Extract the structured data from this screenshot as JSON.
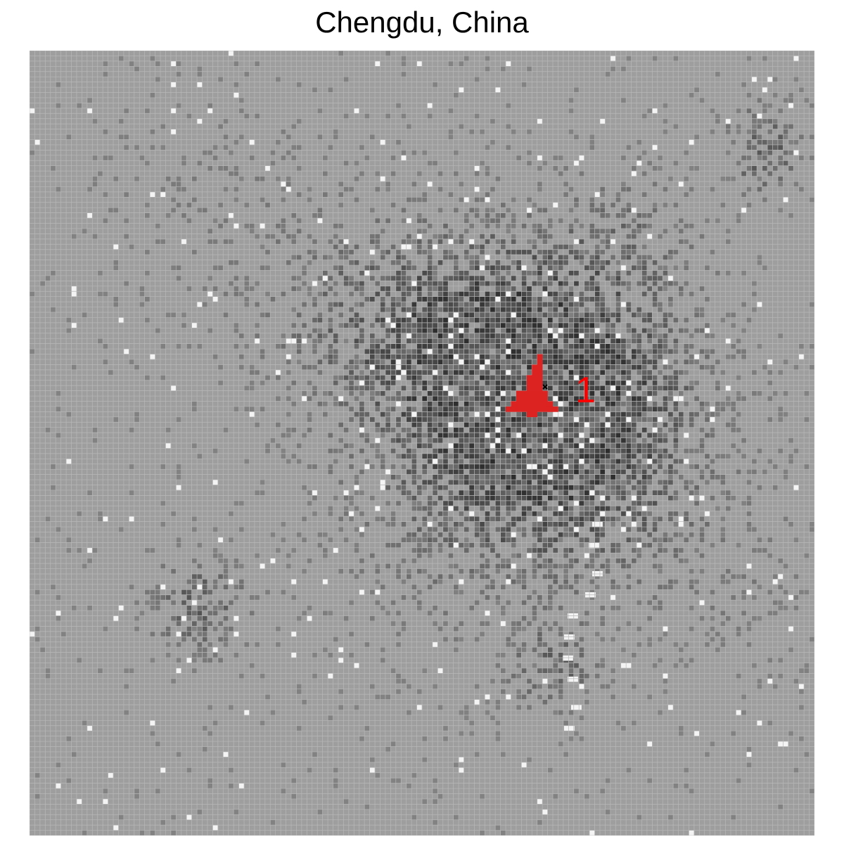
{
  "title": "Chengdu, China",
  "map": {
    "grid_cells": 150,
    "background_color": "#9e9e9e",
    "grid_line_color": "#b8b8b8",
    "highlight_color": "#dd2222",
    "center_marker_color": "#000000",
    "label_color": "#ff0000"
  },
  "cluster": {
    "label": "1"
  }
}
